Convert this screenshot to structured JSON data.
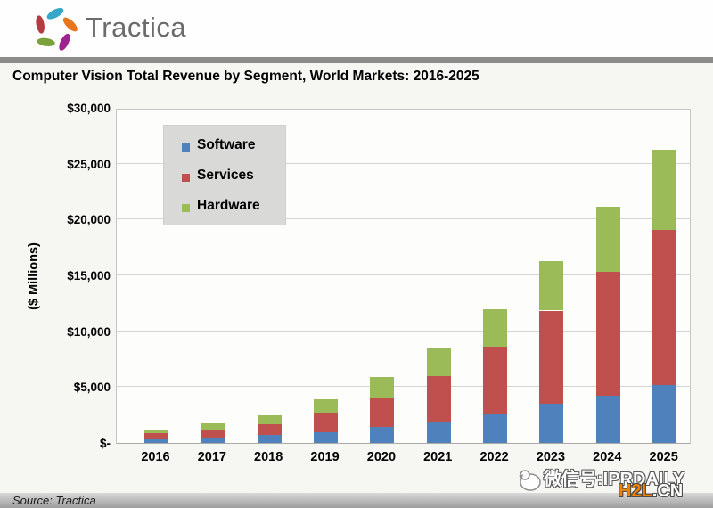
{
  "header": {
    "brand": "Tractica",
    "logo_petal_colors": [
      "#35a7c9",
      "#e8761d",
      "#a0228c",
      "#7ba23d",
      "#b53b40"
    ]
  },
  "title": "Computer Vision Total Revenue by Segment, World Markets: 2016-2025",
  "chart_data": {
    "type": "bar",
    "stacked": true,
    "title": "Computer Vision Total Revenue by Segment, World Markets: 2016-2025",
    "categories": [
      "2016",
      "2017",
      "2018",
      "2019",
      "2020",
      "2021",
      "2022",
      "2023",
      "2024",
      "2025"
    ],
    "series": [
      {
        "name": "Software",
        "color": "#4F81BD",
        "values": [
          300,
          450,
          700,
          950,
          1450,
          1850,
          2650,
          3550,
          4250,
          5200
        ]
      },
      {
        "name": "Services",
        "color": "#C0504D",
        "values": [
          550,
          750,
          950,
          1800,
          2550,
          4100,
          6000,
          8300,
          11100,
          13900
        ]
      },
      {
        "name": "Hardware",
        "color": "#9BBB59",
        "values": [
          250,
          550,
          850,
          1150,
          1900,
          2550,
          3350,
          4400,
          5800,
          7150
        ]
      }
    ],
    "xlabel": "",
    "ylabel": "($ Millions)",
    "ylim": [
      0,
      30000
    ],
    "ytick_step": 5000,
    "ytick_labels": [
      "$-",
      "$5,000",
      "$10,000",
      "$15,000",
      "$20,000",
      "$25,000",
      "$30,000"
    ],
    "grid": true,
    "legend_position": "top-left"
  },
  "footer": {
    "source": "Source: Tractica"
  },
  "watermark": {
    "wechat": "微信号:IPRDAILY",
    "site_orange": "H2L",
    "site_rest": ".CN"
  }
}
